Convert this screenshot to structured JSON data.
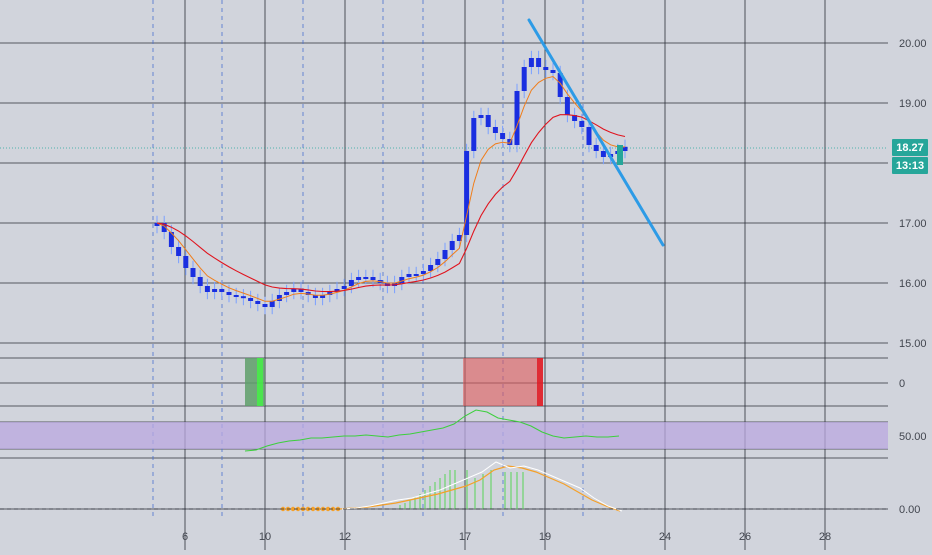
{
  "colors": {
    "background": "#d1d4dc",
    "grid": "#2b2f38",
    "vgrid_dash": "#4a6fd0",
    "candle_up": "#1a2ee0",
    "candle_wick": "#7aa0ff",
    "ema_fast": "#f07d1a",
    "ema_slow": "#e0141e",
    "trendline": "#2d9be6",
    "price_badge": "#26a69a",
    "box_green": "#5f9f6a",
    "box_red": "#e05a5a",
    "rsi_line": "#3ccf3c",
    "rsi_band": "#b9a8e0",
    "osc_orange": "#f5a028",
    "osc_white": "#ffffff",
    "osc_hist": "#56d356"
  },
  "chart_data": {
    "type": "candlestick",
    "x_axis": {
      "tick_labels": [
        "6",
        "10",
        "12",
        "17",
        "19",
        "24",
        "26",
        "28"
      ]
    },
    "y_axis": {
      "tick_labels": [
        "20.00",
        "19.00",
        "17.00",
        "16.00",
        "15.00"
      ],
      "range": [
        14.8,
        20.2
      ]
    },
    "price_badge": "18.27",
    "time_badge": "13:13",
    "candles_approx": [
      17.0,
      16.85,
      16.6,
      16.45,
      16.25,
      16.1,
      15.95,
      15.85,
      15.9,
      15.85,
      15.8,
      15.78,
      15.75,
      15.7,
      15.65,
      15.6,
      15.7,
      15.8,
      15.85,
      15.9,
      15.85,
      15.8,
      15.75,
      15.8,
      15.85,
      15.9,
      15.95,
      16.05,
      16.1,
      16.1,
      16.05,
      16.0,
      15.95,
      16.0,
      16.1,
      16.15,
      16.15,
      16.2,
      16.3,
      16.4,
      16.55,
      16.7,
      16.8,
      18.2,
      18.75,
      18.8,
      18.6,
      18.5,
      18.4,
      18.3,
      19.2,
      19.6,
      19.75,
      19.6,
      19.55,
      19.5,
      19.1,
      18.8,
      18.7,
      18.6,
      18.3,
      18.2,
      18.1,
      18.15,
      18.2,
      18.27
    ],
    "panels": {
      "rsi_scale_label": "50.00",
      "osc_scale_label": "0.00",
      "box_scale_label": "0"
    }
  }
}
